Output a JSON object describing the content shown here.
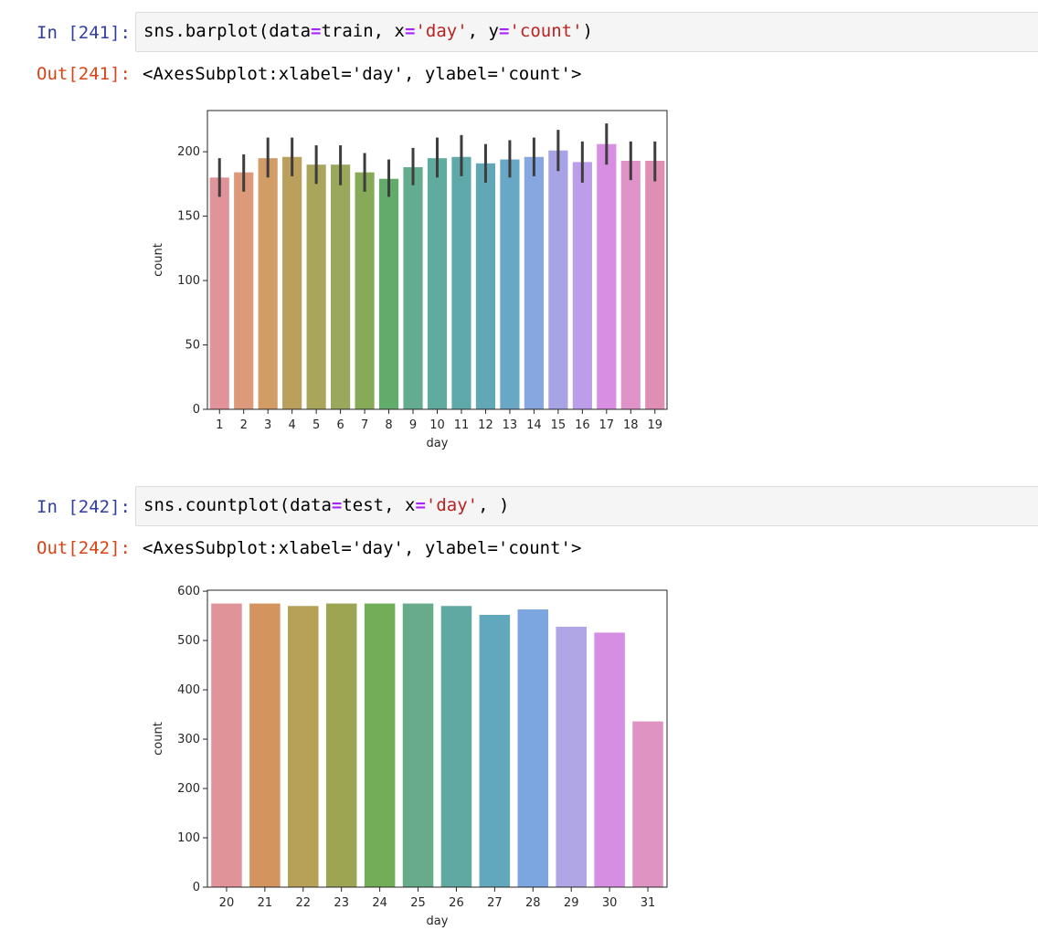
{
  "cells": [
    {
      "in_prompt": "In [241]:",
      "code": {
        "fn": "sns.barplot(data",
        "eq1": "=",
        "a1": "train, x",
        "eq2": "=",
        "s1": "'day'",
        "a2": ", y",
        "eq3": "=",
        "s2": "'count'",
        "tail": ")"
      },
      "out_prompt": "Out[241]:",
      "out_text": "<AxesSubplot:xlabel='day', ylabel='count'>"
    },
    {
      "in_prompt": "In [242]:",
      "code": {
        "fn": "sns.countplot(data",
        "eq1": "=",
        "a1": "test, x",
        "eq2": "=",
        "s1": "'day'",
        "a2": ", )",
        "eq3": "",
        "s2": "",
        "tail": ""
      },
      "out_prompt": "Out[242]:",
      "out_text": "<AxesSubplot:xlabel='day', ylabel='count'>"
    }
  ],
  "chart_data": [
    {
      "type": "bar",
      "xlabel": "day",
      "ylabel": "count",
      "ylim": [
        0,
        232
      ],
      "yticks": [
        0,
        50,
        100,
        150,
        200
      ],
      "categories": [
        "1",
        "2",
        "3",
        "4",
        "5",
        "6",
        "7",
        "8",
        "9",
        "10",
        "11",
        "12",
        "13",
        "14",
        "15",
        "16",
        "17",
        "18",
        "19"
      ],
      "values": [
        180,
        184,
        195,
        196,
        190,
        190,
        184,
        179,
        188,
        195,
        196,
        191,
        194,
        196,
        201,
        192,
        206,
        193,
        193
      ],
      "ci_low": [
        165,
        169,
        180,
        181,
        175,
        174,
        169,
        165,
        174,
        180,
        181,
        176,
        180,
        181,
        185,
        176,
        190,
        178,
        177
      ],
      "ci_high": [
        195,
        198,
        211,
        211,
        205,
        205,
        199,
        194,
        203,
        211,
        213,
        206,
        209,
        211,
        217,
        208,
        222,
        208,
        208
      ],
      "colors": [
        "#e1939a",
        "#dd9a7a",
        "#d29c66",
        "#bb9f5c",
        "#a9a55a",
        "#9aa85b",
        "#86aa58",
        "#61ab6b",
        "#63ac8e",
        "#5fab9f",
        "#5fa9aa",
        "#62a7b5",
        "#69a7c7",
        "#87a7e0",
        "#a8a3e5",
        "#bc9de9",
        "#d88ee2",
        "#df93c9",
        "#e08fb4"
      ]
    },
    {
      "type": "bar",
      "xlabel": "day",
      "ylabel": "count",
      "ylim": [
        0,
        602
      ],
      "yticks": [
        0,
        100,
        200,
        300,
        400,
        500,
        600
      ],
      "categories": [
        "20",
        "21",
        "22",
        "23",
        "24",
        "25",
        "26",
        "27",
        "28",
        "29",
        "30",
        "31"
      ],
      "values": [
        575,
        575,
        570,
        575,
        575,
        575,
        570,
        552,
        563,
        528,
        516,
        336
      ],
      "colors": [
        "#e1939a",
        "#d4945e",
        "#b6a157",
        "#9da552",
        "#72ad58",
        "#67ab8b",
        "#5fa9a2",
        "#62a8bc",
        "#7ba6e0",
        "#b0a5e5",
        "#d68ee2",
        "#df93c3"
      ]
    }
  ]
}
